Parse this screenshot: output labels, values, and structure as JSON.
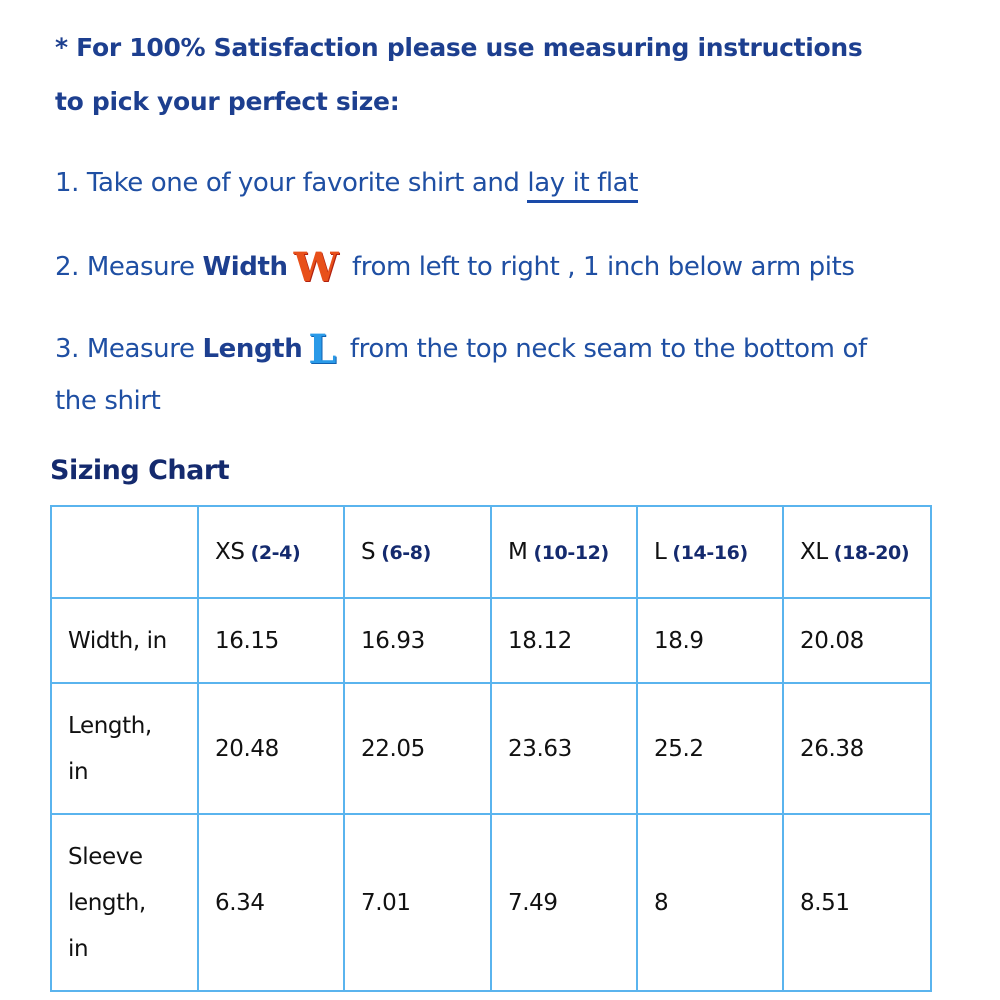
{
  "intro": {
    "line1": "* For 100% Satisfaction please use measuring instructions",
    "line2": "to pick your perfect size:"
  },
  "steps": [
    {
      "prefix": "1. Take one of your favorite shirt and ",
      "underlined": "lay it flat"
    },
    {
      "prefix": "2. Measure ",
      "bold": "Width",
      "icon": "W",
      "suffix": " from left to right , 1 inch below arm pits"
    },
    {
      "prefix": "3. Measure ",
      "bold": "Length",
      "icon": "L",
      "suffix": " from the top neck seam to the bottom of",
      "continuation": "the shirt"
    }
  ],
  "chart_title": "Sizing Chart",
  "table": {
    "headers": [
      {
        "size": "XS",
        "range": "(2-4)"
      },
      {
        "size": "S",
        "range": "(6-8)"
      },
      {
        "size": "M",
        "range": "(10-12)"
      },
      {
        "size": "L",
        "range": "(14-16)"
      },
      {
        "size": "XL",
        "range": "(18-20)"
      }
    ],
    "rows": [
      {
        "label": [
          "Width, in"
        ],
        "values": [
          "16.15",
          "16.93",
          "18.12",
          "18.9",
          "20.08"
        ]
      },
      {
        "label": [
          "Length,",
          "in"
        ],
        "values": [
          "20.48",
          "22.05",
          "23.63",
          "25.2",
          "26.38"
        ]
      },
      {
        "label": [
          "Sleeve",
          "length,",
          "in"
        ],
        "values": [
          "6.34",
          "7.01",
          "7.49",
          "8",
          "8.51"
        ]
      }
    ]
  },
  "colors": {
    "heading": "#1d3f8f",
    "body": "#1f4fa3",
    "table_border": "#5ab4ee",
    "w_icon": "#e8501a",
    "l_icon": "#2a9ae8"
  }
}
